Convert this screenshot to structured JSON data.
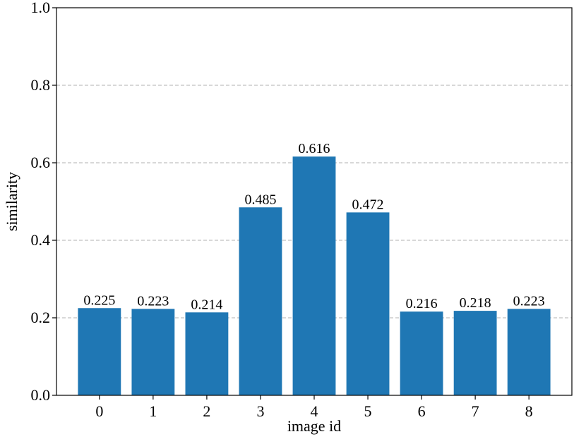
{
  "chart_data": {
    "type": "bar",
    "title": "",
    "xlabel": "image id",
    "ylabel": "similarity",
    "categories": [
      "0",
      "1",
      "2",
      "3",
      "4",
      "5",
      "6",
      "7",
      "8"
    ],
    "values": [
      0.225,
      0.223,
      0.214,
      0.485,
      0.616,
      0.472,
      0.216,
      0.218,
      0.223
    ],
    "value_labels": [
      "0.225",
      "0.223",
      "0.214",
      "0.485",
      "0.616",
      "0.472",
      "0.216",
      "0.218",
      "0.223"
    ],
    "ylim": [
      0.0,
      1.0
    ],
    "yticks": [
      0.0,
      0.2,
      0.4,
      0.6,
      0.8,
      1.0
    ],
    "ytick_labels": [
      "0.0",
      "0.2",
      "0.4",
      "0.6",
      "0.8",
      "1.0"
    ],
    "grid": "horizontal dashed",
    "legend": "none",
    "colors": {
      "bar": "#1f77b4",
      "grid": "#b0b0b0",
      "axis": "#000000"
    }
  }
}
